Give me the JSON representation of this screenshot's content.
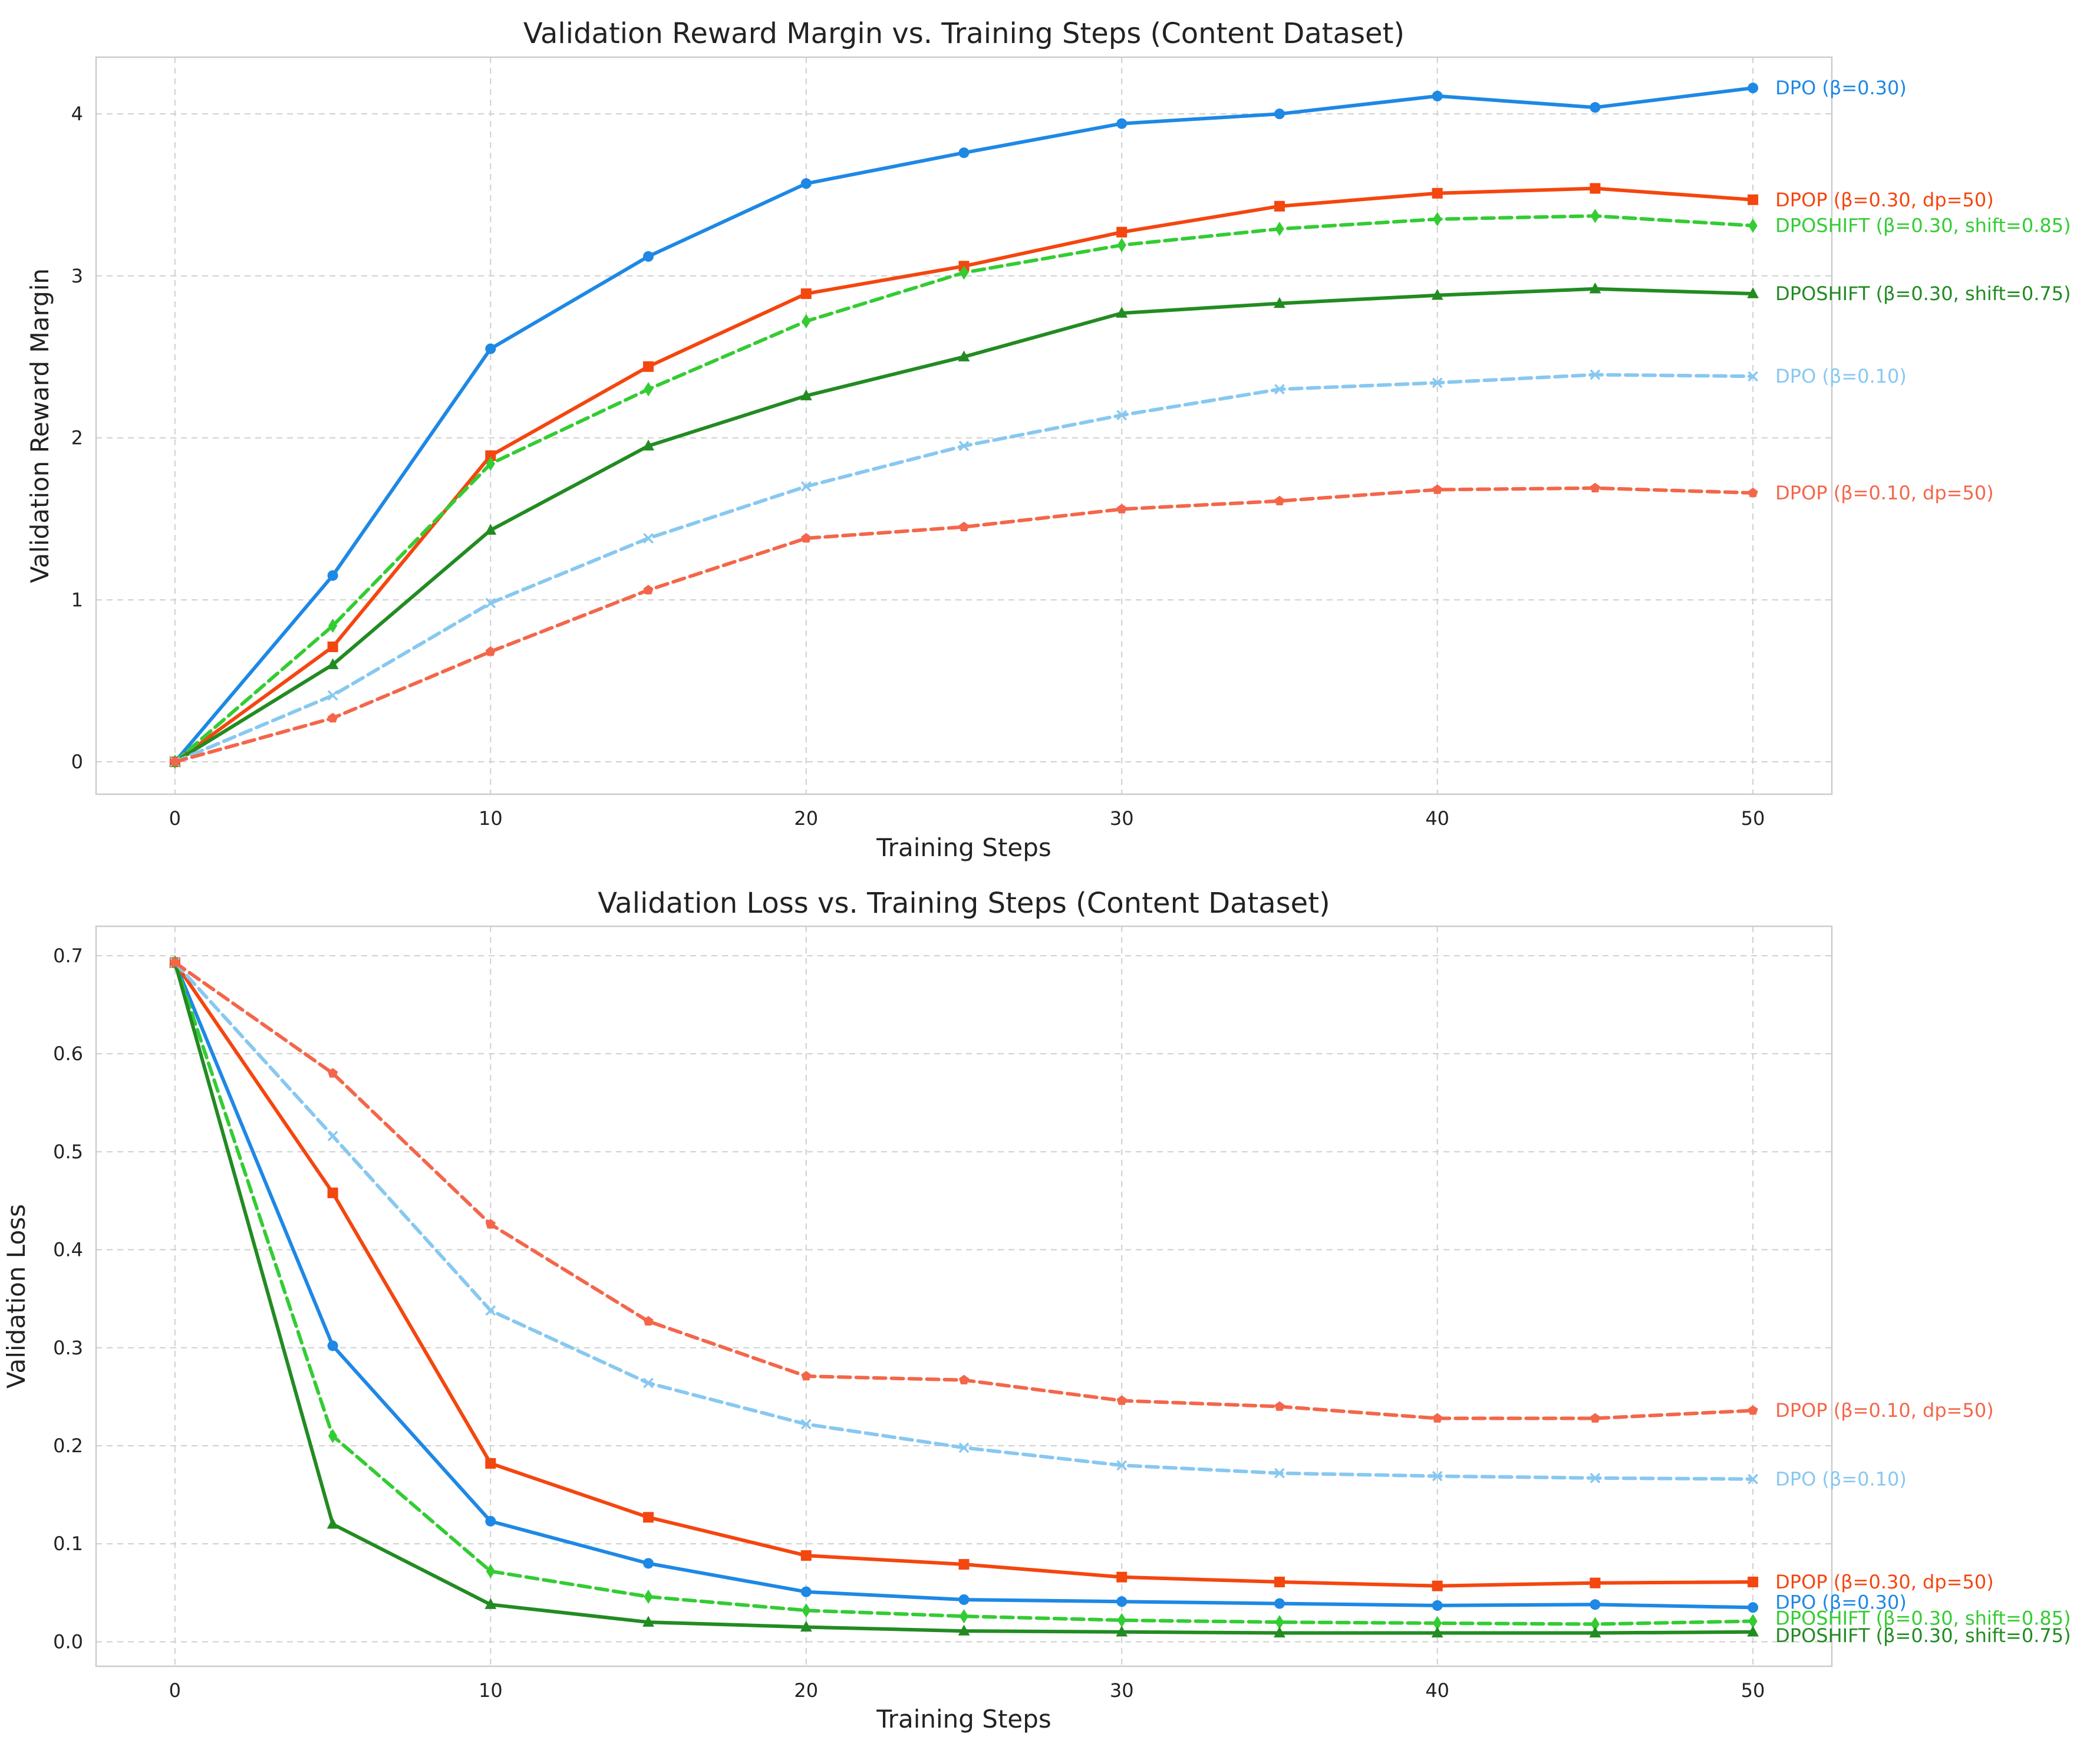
{
  "chart_data": [
    {
      "type": "line",
      "title": "Validation Reward Margin vs. Training Steps (Content Dataset)",
      "xlabel": "Training Steps",
      "ylabel": "Validation Reward Margin",
      "xlim": [
        -2.5,
        52.5
      ],
      "ylim": [
        -0.2,
        4.35
      ],
      "xticks": [
        0,
        10,
        20,
        30,
        40,
        50
      ],
      "yticks": [
        0,
        1,
        2,
        3,
        4
      ],
      "grid": true,
      "legend": "end-of-line labels",
      "x": [
        0,
        5,
        10,
        15,
        20,
        25,
        30,
        35,
        40,
        45,
        50
      ],
      "series": [
        {
          "name": "DPO (β=0.30)",
          "color": "#1e88e5",
          "dash": "solid",
          "marker": "circle",
          "values": [
            0,
            1.15,
            2.55,
            3.12,
            3.57,
            3.76,
            3.94,
            4.0,
            4.11,
            4.04,
            4.16
          ]
        },
        {
          "name": "DPOP (β=0.30, dp=50)",
          "color": "#f4460f",
          "dash": "solid",
          "marker": "square",
          "values": [
            0,
            0.71,
            1.89,
            2.44,
            2.89,
            3.06,
            3.27,
            3.43,
            3.51,
            3.54,
            3.47
          ]
        },
        {
          "name": "DPOSHIFT (β=0.30, shift=0.85)",
          "color": "#33cc33",
          "dash": "dashed",
          "marker": "diamond",
          "values": [
            0,
            0.84,
            1.84,
            2.3,
            2.72,
            3.02,
            3.19,
            3.29,
            3.35,
            3.37,
            3.31
          ]
        },
        {
          "name": "DPOSHIFT (β=0.30, shift=0.75)",
          "color": "#228b22",
          "dash": "solid",
          "marker": "triangle",
          "values": [
            0,
            0.6,
            1.43,
            1.95,
            2.26,
            2.5,
            2.77,
            2.83,
            2.88,
            2.92,
            2.89
          ]
        },
        {
          "name": "DPO (β=0.10)",
          "color": "#87c8f0",
          "dash": "dashed",
          "marker": "x",
          "values": [
            0,
            0.41,
            0.98,
            1.38,
            1.7,
            1.95,
            2.14,
            2.3,
            2.34,
            2.39,
            2.38
          ]
        },
        {
          "name": "DPOP (β=0.10, dp=50)",
          "color": "#f4664a",
          "dash": "dashed",
          "marker": "pentagon",
          "values": [
            0,
            0.27,
            0.68,
            1.06,
            1.38,
            1.45,
            1.56,
            1.61,
            1.68,
            1.69,
            1.66
          ]
        }
      ]
    },
    {
      "type": "line",
      "title": "Validation Loss vs. Training Steps (Content Dataset)",
      "xlabel": "Training Steps",
      "ylabel": "Validation Loss",
      "xlim": [
        -2.5,
        52.5
      ],
      "ylim": [
        -0.025,
        0.73
      ],
      "xticks": [
        0,
        10,
        20,
        30,
        40,
        50
      ],
      "yticks": [
        0.0,
        0.1,
        0.2,
        0.3,
        0.4,
        0.5,
        0.6,
        0.7
      ],
      "grid": true,
      "legend": "end-of-line labels",
      "x": [
        0,
        5,
        10,
        15,
        20,
        25,
        30,
        35,
        40,
        45,
        50
      ],
      "series": [
        {
          "name": "DPO (β=0.30)",
          "color": "#1e88e5",
          "dash": "solid",
          "marker": "circle",
          "values": [
            0.693,
            0.302,
            0.123,
            0.08,
            0.051,
            0.043,
            0.041,
            0.039,
            0.037,
            0.038,
            0.035
          ]
        },
        {
          "name": "DPOP (β=0.30, dp=50)",
          "color": "#f4460f",
          "dash": "solid",
          "marker": "square",
          "values": [
            0.693,
            0.458,
            0.182,
            0.127,
            0.088,
            0.079,
            0.066,
            0.061,
            0.057,
            0.06,
            0.061
          ]
        },
        {
          "name": "DPOSHIFT (β=0.30, shift=0.85)",
          "color": "#33cc33",
          "dash": "dashed",
          "marker": "diamond",
          "values": [
            0.693,
            0.21,
            0.072,
            0.046,
            0.032,
            0.026,
            0.022,
            0.02,
            0.019,
            0.018,
            0.021
          ]
        },
        {
          "name": "DPOSHIFT (β=0.30, shift=0.75)",
          "color": "#228b22",
          "dash": "solid",
          "marker": "triangle",
          "values": [
            0.693,
            0.12,
            0.038,
            0.02,
            0.015,
            0.011,
            0.01,
            0.009,
            0.009,
            0.009,
            0.01
          ]
        },
        {
          "name": "DPO (β=0.10)",
          "color": "#87c8f0",
          "dash": "dashed",
          "marker": "x",
          "values": [
            0.693,
            0.516,
            0.338,
            0.264,
            0.222,
            0.198,
            0.18,
            0.172,
            0.169,
            0.167,
            0.166
          ]
        },
        {
          "name": "DPOP (β=0.10, dp=50)",
          "color": "#f4664a",
          "dash": "dashed",
          "marker": "pentagon",
          "values": [
            0.693,
            0.58,
            0.426,
            0.327,
            0.271,
            0.267,
            0.246,
            0.24,
            0.228,
            0.228,
            0.236
          ]
        }
      ]
    }
  ]
}
